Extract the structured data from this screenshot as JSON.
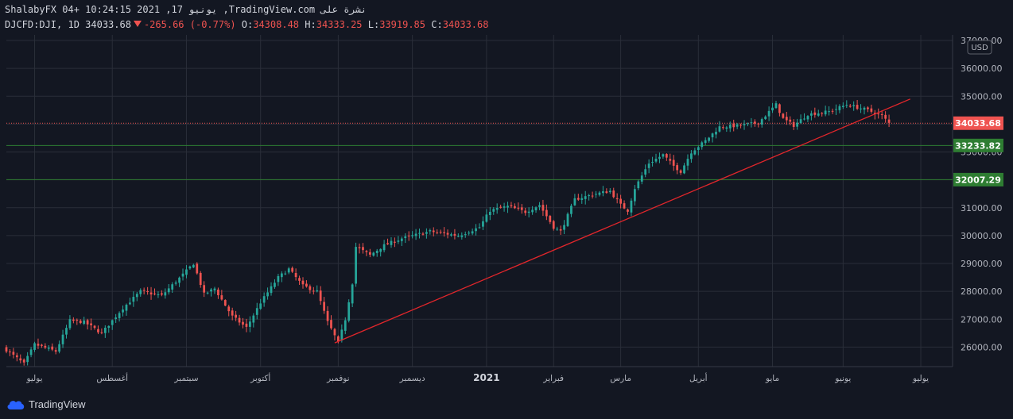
{
  "header": {
    "title": "ShalabyFX 04+ 10:24:15 2021 ,17 يونيو ,TradingView.com نشرة على",
    "symbol": "DJCFD:DJI, 1D",
    "last": "34033.68",
    "change": "-265.66 (-0.77%)",
    "o_label": "O:",
    "o_value": "34308.48",
    "h_label": "H:",
    "h_value": "34333.25",
    "l_label": "L:",
    "l_value": "33919.85",
    "c_label": "C:",
    "c_value": "34033.68"
  },
  "footer": {
    "brand": "TradingView"
  },
  "colors": {
    "bg": "#131722",
    "grid": "#2a2e39",
    "up": "#26a69a",
    "down": "#ef5350",
    "trend": "#e0262b",
    "hline": "#2e7d32",
    "text": "#b2b5be"
  },
  "chart_data": {
    "type": "candlestick",
    "currency": "USD",
    "ylim": [
      25300,
      37200
    ],
    "y_ticks": [
      26000,
      27000,
      28000,
      29000,
      30000,
      31000,
      32000,
      33000,
      34000,
      35000,
      36000,
      37000
    ],
    "y_tick_labels": [
      "26000.00",
      "27000.00",
      "28000.00",
      "29000.00",
      "30000.00",
      "31000.00",
      "32000.00",
      "33000.00",
      "34000.00",
      "35000.00",
      "36000.00",
      "37000.00"
    ],
    "x_range": [
      0,
      268
    ],
    "x_ticks": [
      {
        "x": 8,
        "label": "يوليو",
        "bold": false
      },
      {
        "x": 30,
        "label": "أغسطس",
        "bold": false
      },
      {
        "x": 51,
        "label": "سبتمبر",
        "bold": false
      },
      {
        "x": 72,
        "label": "أكتوبر",
        "bold": false
      },
      {
        "x": 94,
        "label": "نوفمبر",
        "bold": false
      },
      {
        "x": 115,
        "label": "ديسمبر",
        "bold": false
      },
      {
        "x": 136,
        "label": "2021",
        "bold": true
      },
      {
        "x": 155,
        "label": "فبراير",
        "bold": false
      },
      {
        "x": 174,
        "label": "مارس",
        "bold": false
      },
      {
        "x": 196,
        "label": "أبريل",
        "bold": false
      },
      {
        "x": 217,
        "label": "مايو",
        "bold": false
      },
      {
        "x": 237,
        "label": "يونيو",
        "bold": false
      },
      {
        "x": 259,
        "label": "يوليو",
        "bold": false
      }
    ],
    "price_labels": [
      {
        "value": 34033.68,
        "label": "34033.68",
        "style": "last",
        "line": "dotted"
      },
      {
        "value": 33233.82,
        "label": "33233.82",
        "style": "level",
        "line": "solid"
      },
      {
        "value": 32007.29,
        "label": "32007.29",
        "style": "level",
        "line": "solid"
      }
    ],
    "trendline": {
      "x1": 93,
      "y1": 26150,
      "x2": 256,
      "y2": 34900
    },
    "anchors": [
      [
        0,
        25900
      ],
      [
        5,
        25400
      ],
      [
        8,
        26100
      ],
      [
        14,
        25850
      ],
      [
        18,
        26950
      ],
      [
        22,
        26900
      ],
      [
        27,
        26500
      ],
      [
        33,
        27400
      ],
      [
        38,
        28000
      ],
      [
        44,
        27850
      ],
      [
        50,
        28600
      ],
      [
        53,
        29000
      ],
      [
        56,
        27900
      ],
      [
        59,
        28100
      ],
      [
        64,
        27100
      ],
      [
        68,
        26700
      ],
      [
        72,
        27600
      ],
      [
        77,
        28500
      ],
      [
        80,
        28800
      ],
      [
        84,
        28200
      ],
      [
        88,
        28000
      ],
      [
        91,
        26900
      ],
      [
        94,
        26150
      ],
      [
        96,
        27000
      ],
      [
        98,
        28300
      ],
      [
        99,
        29600
      ],
      [
        103,
        29300
      ],
      [
        107,
        29650
      ],
      [
        112,
        29900
      ],
      [
        120,
        30150
      ],
      [
        128,
        30000
      ],
      [
        134,
        30300
      ],
      [
        137,
        30900
      ],
      [
        142,
        31050
      ],
      [
        147,
        30850
      ],
      [
        151,
        31100
      ],
      [
        155,
        30300
      ],
      [
        157,
        30150
      ],
      [
        161,
        31300
      ],
      [
        167,
        31500
      ],
      [
        171,
        31600
      ],
      [
        174,
        31100
      ],
      [
        176,
        30900
      ],
      [
        178,
        31700
      ],
      [
        182,
        32600
      ],
      [
        186,
        32900
      ],
      [
        189,
        32500
      ],
      [
        191,
        32300
      ],
      [
        194,
        33000
      ],
      [
        198,
        33400
      ],
      [
        202,
        33900
      ],
      [
        208,
        33950
      ],
      [
        213,
        34050
      ],
      [
        218,
        34700
      ],
      [
        220,
        34200
      ],
      [
        223,
        33950
      ],
      [
        227,
        34350
      ],
      [
        233,
        34450
      ],
      [
        238,
        34700
      ],
      [
        244,
        34500
      ],
      [
        248,
        34300
      ],
      [
        250,
        34034
      ]
    ]
  }
}
